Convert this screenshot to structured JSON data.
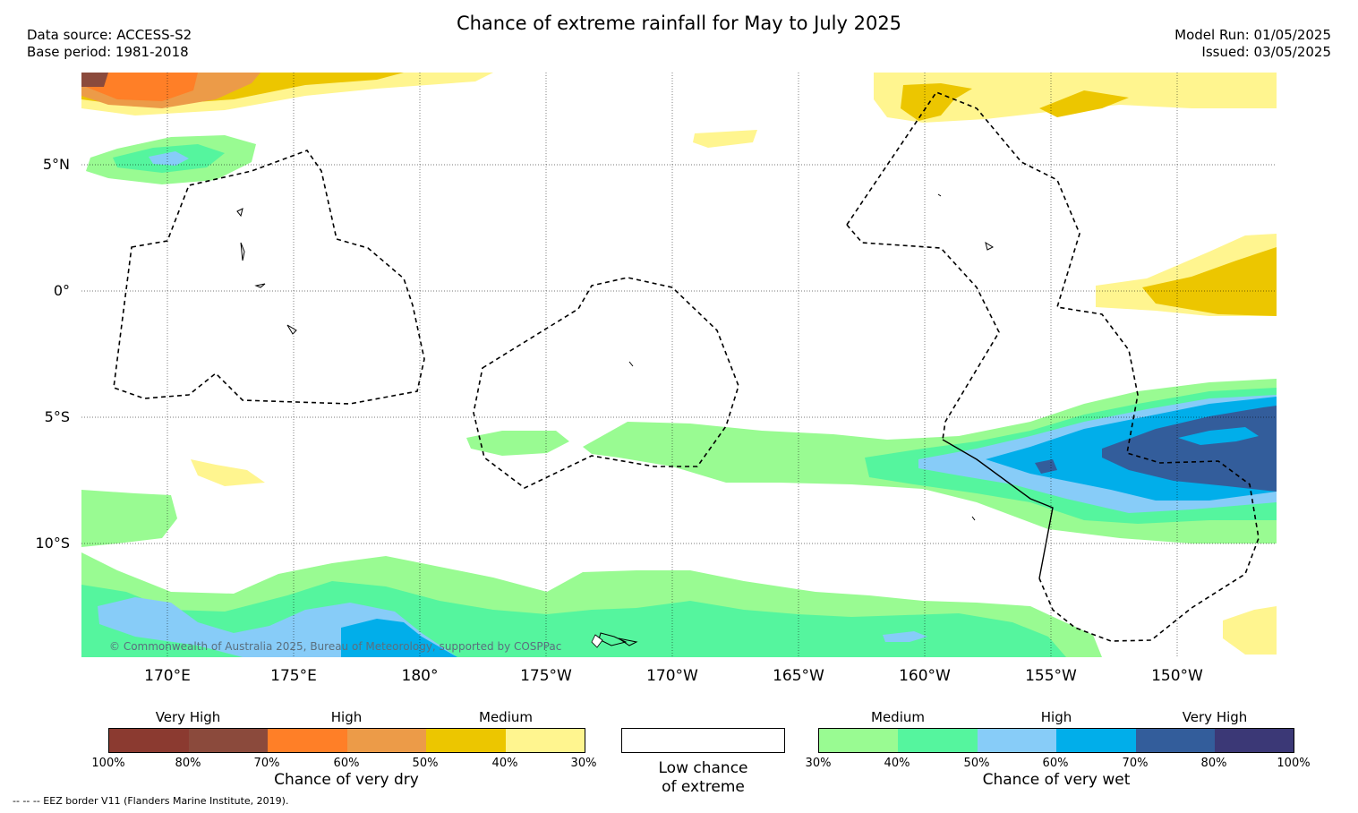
{
  "title": "Chance of extreme rainfall for May to July 2025",
  "data_source": "Data source: ACCESS-S2",
  "base_period": "Base period: 1981-2018",
  "model_run": "Model Run: 01/05/2025",
  "issued": "Issued: 03/05/2025",
  "map": {
    "lat_labels": [
      "5°N",
      "0°",
      "5°S",
      "10°S"
    ],
    "lon_labels": [
      "170°E",
      "175°E",
      "180°",
      "175°W",
      "170°W",
      "165°W",
      "160°W",
      "155°W",
      "150°W"
    ],
    "copyright": "© Commonwealth of Australia 2025, Bureau of Meteorology, supported by COSPPac"
  },
  "legend_dry": {
    "categories": [
      "Very High",
      "High",
      "Medium"
    ],
    "ticks": [
      "100%",
      "80%",
      "70%",
      "60%",
      "50%",
      "40%",
      "30%"
    ],
    "colors": [
      "#8b3a30",
      "#8b4a3c",
      "#ff7f27",
      "#ec9b48",
      "#ecc600",
      "#fff58f"
    ],
    "title": "Chance of very dry"
  },
  "legend_low": {
    "line1": "Low chance",
    "line2": "of extreme",
    "color": "#ffffff"
  },
  "legend_wet": {
    "categories": [
      "Medium",
      "High",
      "Very High"
    ],
    "ticks": [
      "30%",
      "40%",
      "50%",
      "60%",
      "70%",
      "80%",
      "100%"
    ],
    "colors": [
      "#99fb92",
      "#55f59e",
      "#87ccf8",
      "#01aeea",
      "#335d9b",
      "#3b3876"
    ],
    "title": "Chance of very wet"
  },
  "eez_note": "-- -- -- EEZ border V11 (Flanders Marine Institute, 2019)."
}
